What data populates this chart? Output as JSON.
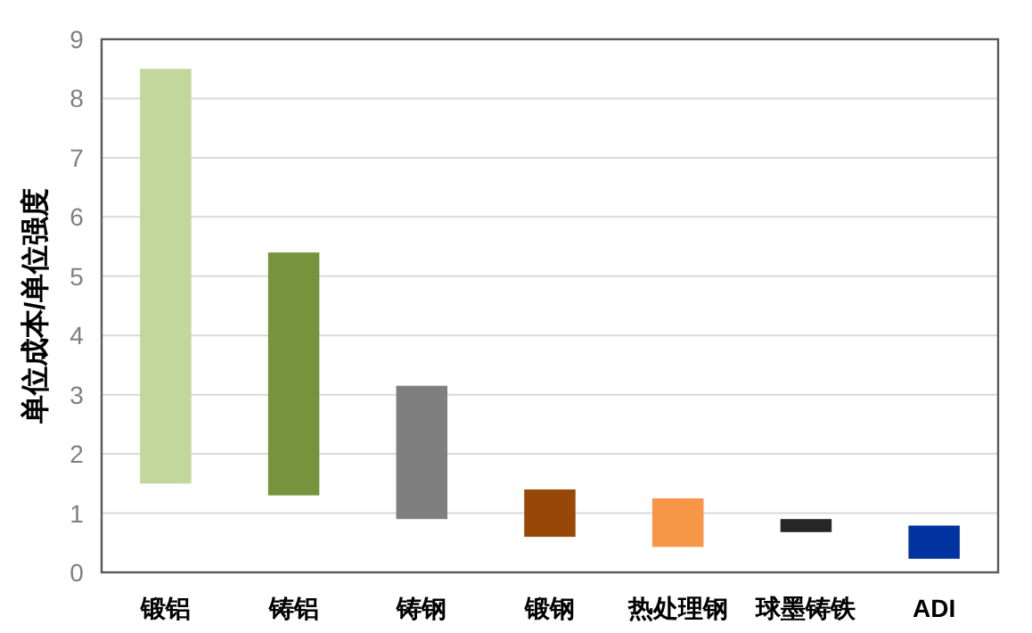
{
  "chart_data": {
    "type": "bar",
    "ylabel": "单位成本/单位强度",
    "categories": [
      "锻铝",
      "铸铝",
      "铸钢",
      "锻钢",
      "热处理钢",
      "球墨铸铁",
      "ADI"
    ],
    "base": [
      1.5,
      1.3,
      0.9,
      0.6,
      0.43,
      0.68,
      0.23
    ],
    "values": [
      7.0,
      4.1,
      2.25,
      0.8,
      0.82,
      0.22,
      0.56
    ],
    "colors": [
      "#c3d69b",
      "#77933c",
      "#7f7f7f",
      "#974806",
      "#f79646",
      "#262626",
      "#0033a0"
    ],
    "ylim": [
      0,
      9
    ],
    "yticks": [
      0,
      1,
      2,
      3,
      4,
      5,
      6,
      7,
      8,
      9
    ],
    "grid": "y"
  }
}
